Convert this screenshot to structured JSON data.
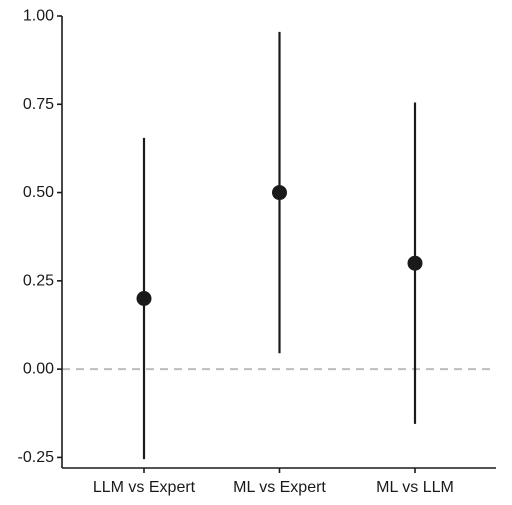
{
  "chart_data": {
    "type": "scatter",
    "title": "",
    "xlabel": "",
    "ylabel": "",
    "categories": [
      "LLM vs Expert",
      "ML vs Expert",
      "ML vs LLM"
    ],
    "estimates": [
      0.2,
      0.5,
      0.3
    ],
    "lower": [
      -0.255,
      0.045,
      -0.155
    ],
    "upper": [
      0.655,
      0.955,
      0.755
    ],
    "ylim": [
      -0.28,
      1.0
    ],
    "y_ticks": [
      -0.25,
      0.0,
      0.25,
      0.5,
      0.75,
      1.0
    ],
    "y_tick_labels": [
      "-0.25",
      "0.00",
      "0.25",
      "0.50",
      "0.75",
      "1.00"
    ],
    "reference_line": 0.0,
    "grid": false,
    "colors": {
      "point": "#1a1a1a",
      "interval": "#1a1a1a",
      "reference_line": "#bdbdbd",
      "axis": "#1a1a1a"
    }
  }
}
